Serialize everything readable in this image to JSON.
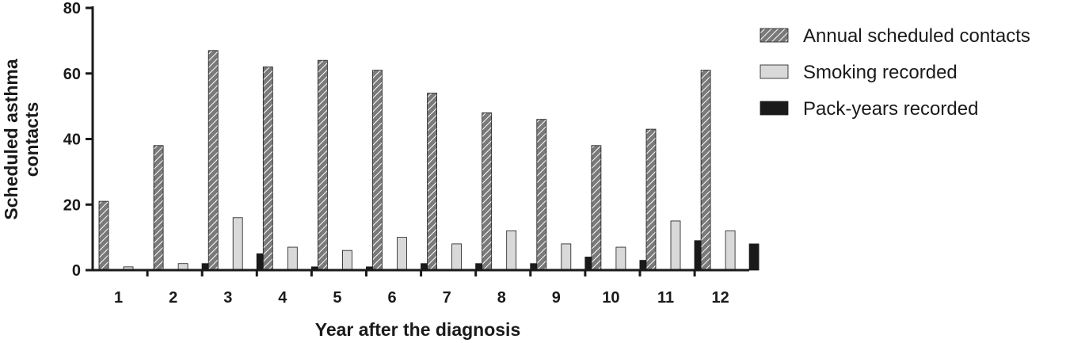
{
  "chart_data": {
    "type": "bar",
    "xlabel": "Year after the diagnosis",
    "ylabel_lines": [
      "Scheduled asthma",
      "contacts"
    ],
    "ylim": [
      0,
      80
    ],
    "yticks": [
      0,
      20,
      40,
      60,
      80
    ],
    "categories": [
      "1",
      "2",
      "3",
      "4",
      "5",
      "6",
      "7",
      "8",
      "9",
      "10",
      "11",
      "12"
    ],
    "grid": false,
    "legend_position": "top-right",
    "series": [
      {
        "name": "Annual scheduled contacts",
        "pattern": "hatched",
        "fill": "#7a7a7a",
        "values": [
          21,
          38,
          67,
          62,
          64,
          61,
          54,
          48,
          46,
          38,
          43,
          61
        ]
      },
      {
        "name": "Smoking recorded",
        "pattern": "solid",
        "fill": "#d9d9d9",
        "values": [
          1,
          2,
          16,
          7,
          6,
          10,
          8,
          12,
          8,
          7,
          15,
          12
        ]
      },
      {
        "name": "Pack-years recorded",
        "pattern": "solid",
        "fill": "#1a1a1a",
        "values": [
          0,
          2,
          5,
          1,
          1,
          2,
          2,
          2,
          4,
          3,
          9,
          8
        ]
      }
    ]
  }
}
